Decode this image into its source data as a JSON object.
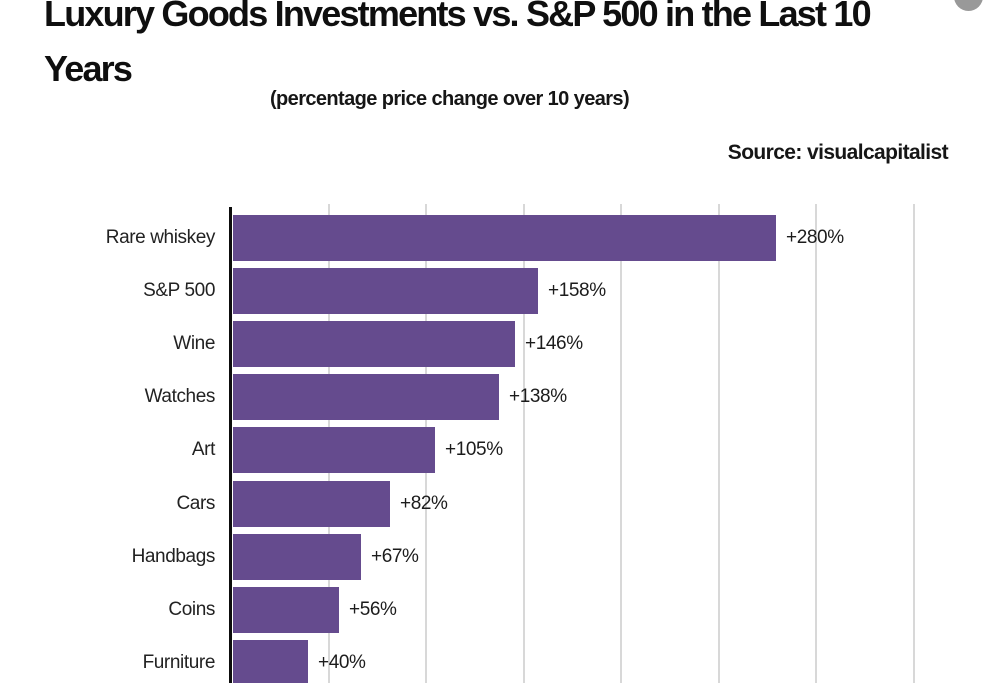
{
  "header": {
    "title_line1": "Luxury Goods Investments vs. S&P 500 in the Last 10",
    "title_line2": "Years",
    "subtitle": "(percentage price change over 10 years)",
    "source": "Source: visualcapitalist"
  },
  "colors": {
    "bar": "#654b8e",
    "axis": "#0d0d0d",
    "gridline": "#d8d8d8",
    "background": "#ffffff",
    "text": "#161616",
    "floating_circle": "#999999"
  },
  "chart_data": {
    "type": "bar",
    "orientation": "horizontal",
    "title": "Luxury Goods Investments vs. S&P 500 in the Last 10 Years",
    "subtitle": "(percentage price change over 10 years)",
    "source": "Source: visualcapitalist",
    "categories": [
      "Rare whiskey",
      "S&P 500",
      "Wine",
      "Watches",
      "Art",
      "Cars",
      "Handbags",
      "Coins",
      "Furniture"
    ],
    "values": [
      280,
      158,
      146,
      138,
      105,
      82,
      67,
      56,
      40
    ],
    "value_labels": [
      "+280%",
      "+158%",
      "+146%",
      "+138%",
      "+105%",
      "+82%",
      "+67%",
      "+56%",
      "+40%"
    ],
    "unit": "percent",
    "xlim": [
      0,
      350
    ],
    "grid_step": 50,
    "grid": true,
    "legend": "none",
    "bar_color": "#654b8e"
  }
}
